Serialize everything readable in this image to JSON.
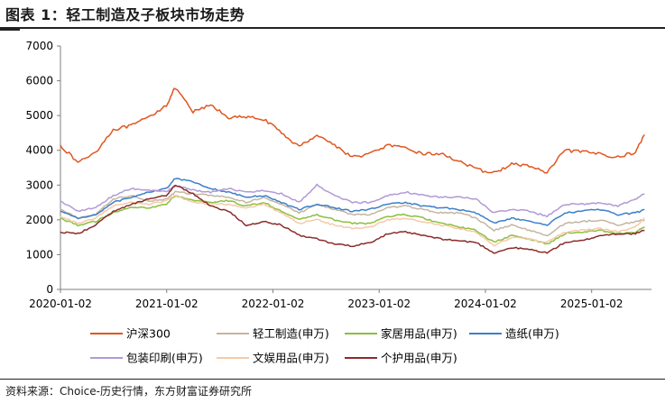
{
  "header": {
    "title": "图表 1：轻工制造及子板块市场走势"
  },
  "footer": {
    "source": "资料来源：Choice-历史行情，东方财富证券研究所"
  },
  "chart_data": {
    "type": "line",
    "title": "轻工制造及子板块市场走势",
    "xlabel": "",
    "ylabel": "",
    "ylim": [
      0,
      7000
    ],
    "yticks": [
      0,
      1000,
      2000,
      3000,
      4000,
      5000,
      6000,
      7000
    ],
    "xlim": [
      "2020-01-02",
      "2025-07-25"
    ],
    "xticks": [
      "2020-01-02",
      "2021-01-02",
      "2022-01-02",
      "2023-01-02",
      "2024-01-02",
      "2025-01-02"
    ],
    "x": [
      "2020-01",
      "2020-03",
      "2020-05",
      "2020-07",
      "2020-09",
      "2020-11",
      "2021-01",
      "2021-02",
      "2021-04",
      "2021-06",
      "2021-08",
      "2021-10",
      "2021-12",
      "2022-02",
      "2022-04",
      "2022-06",
      "2022-08",
      "2022-10",
      "2022-12",
      "2023-02",
      "2023-04",
      "2023-06",
      "2023-08",
      "2023-10",
      "2023-12",
      "2024-02",
      "2024-04",
      "2024-06",
      "2024-08",
      "2024-10",
      "2024-12",
      "2025-02",
      "2025-04",
      "2025-06",
      "2025-07"
    ],
    "series": [
      {
        "name": "沪深300",
        "color": "#e0561f",
        "values": [
          4150,
          3650,
          3950,
          4600,
          4700,
          4950,
          5300,
          5800,
          5100,
          5300,
          4950,
          4950,
          4900,
          4500,
          4100,
          4450,
          4150,
          3800,
          3900,
          4150,
          4050,
          3900,
          3900,
          3700,
          3450,
          3350,
          3600,
          3550,
          3350,
          4000,
          3950,
          3900,
          3800,
          3950,
          4450
        ]
      },
      {
        "name": "轻工制造(申万)",
        "color": "#c4b5a0",
        "values": [
          2300,
          2050,
          2150,
          2600,
          2700,
          2550,
          2600,
          2800,
          2750,
          2700,
          2650,
          2500,
          2650,
          2450,
          2200,
          2450,
          2300,
          2150,
          2150,
          2350,
          2400,
          2300,
          2200,
          2200,
          2050,
          1700,
          1850,
          1700,
          1550,
          1900,
          1950,
          2000,
          1850,
          1950,
          2000
        ]
      },
      {
        "name": "家居用品(申万)",
        "color": "#8cbf3f",
        "values": [
          2050,
          1850,
          1950,
          2200,
          2350,
          2350,
          2450,
          2700,
          2550,
          2500,
          2550,
          2400,
          2500,
          2250,
          2000,
          2150,
          2000,
          1900,
          1900,
          2100,
          2150,
          2050,
          1900,
          1800,
          1700,
          1350,
          1550,
          1450,
          1300,
          1600,
          1650,
          1700,
          1600,
          1650,
          1800
        ]
      },
      {
        "name": "造纸(申万)",
        "color": "#3d7fc9",
        "values": [
          2250,
          2050,
          2150,
          2500,
          2650,
          2800,
          2900,
          3200,
          3100,
          2900,
          2800,
          2650,
          2700,
          2500,
          2300,
          2450,
          2350,
          2250,
          2300,
          2450,
          2500,
          2400,
          2350,
          2300,
          2200,
          1900,
          2050,
          1950,
          1850,
          2200,
          2250,
          2300,
          2150,
          2200,
          2300
        ]
      },
      {
        "name": "包装印刷(申万)",
        "color": "#b19ad6",
        "values": [
          2550,
          2250,
          2350,
          2700,
          2900,
          2850,
          2800,
          3000,
          2850,
          2800,
          2900,
          2800,
          2850,
          2750,
          2500,
          3000,
          2700,
          2500,
          2500,
          2700,
          2800,
          2700,
          2650,
          2650,
          2600,
          2200,
          2300,
          2250,
          2100,
          2450,
          2450,
          2500,
          2400,
          2600,
          2750
        ]
      },
      {
        "name": "文娱用品(申万)",
        "color": "#f7c9a8",
        "values": [
          2100,
          1900,
          2050,
          2400,
          2500,
          2450,
          2550,
          2700,
          2500,
          2450,
          2450,
          2350,
          2450,
          2200,
          1900,
          2000,
          1850,
          1750,
          1800,
          2000,
          2050,
          1950,
          1850,
          1750,
          1650,
          1250,
          1500,
          1450,
          1350,
          1650,
          1700,
          1750,
          1650,
          1800,
          2050
        ]
      },
      {
        "name": "个护用品(申万)",
        "color": "#8b2b2b",
        "values": [
          1650,
          1600,
          1850,
          2250,
          2450,
          2600,
          2700,
          3000,
          2750,
          2400,
          2250,
          1850,
          1950,
          1850,
          1550,
          1450,
          1300,
          1250,
          1350,
          1600,
          1650,
          1550,
          1450,
          1400,
          1350,
          1050,
          1200,
          1150,
          1050,
          1350,
          1400,
          1550,
          1600,
          1600,
          1700
        ]
      }
    ],
    "legend_position": "bottom",
    "grid": false
  }
}
